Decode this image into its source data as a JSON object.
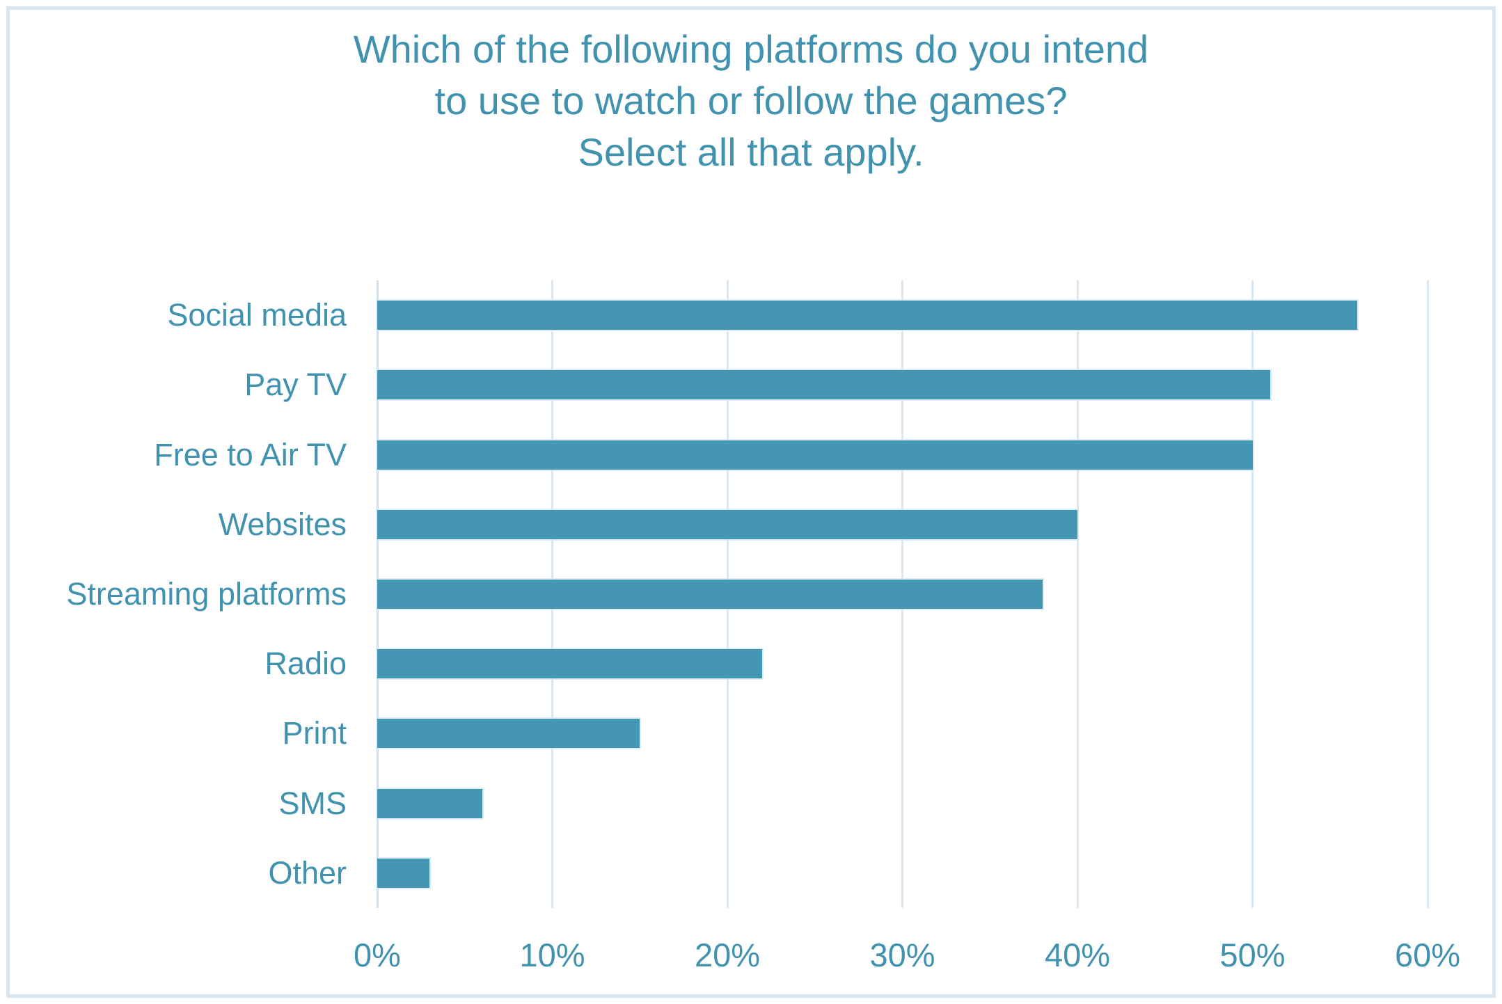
{
  "title": "Which of the following platforms do you intend to use to watch or follow the games? Select all that apply.",
  "title_lines": [
    "Which of the following platforms do you intend",
    "to use to watch or follow the games?",
    "Select all that apply."
  ],
  "colors": {
    "bar": "#4596b2",
    "text": "#4192af",
    "gridline": "#dae8f1",
    "axis_line": "#cfe0ec",
    "frame_border": "#d9e7f0",
    "background": "#ffffff"
  },
  "chart_data": {
    "type": "bar",
    "orientation": "horizontal",
    "title": "Which of the following platforms do you intend to use to watch or follow the games? Select all that apply.",
    "categories": [
      "Social media",
      "Pay TV",
      "Free to Air TV",
      "Websites",
      "Streaming platforms",
      "Radio",
      "Print",
      "SMS",
      "Other"
    ],
    "values": [
      56,
      51,
      50,
      40,
      38,
      22,
      15,
      6,
      3
    ],
    "unit": "%",
    "xlabel": "",
    "ylabel": "",
    "xlim": [
      0,
      60
    ],
    "x_ticks": [
      0,
      10,
      20,
      30,
      40,
      50,
      60
    ],
    "x_tick_labels": [
      "0%",
      "10%",
      "20%",
      "30%",
      "40%",
      "50%",
      "60%"
    ],
    "grid": "vertical-only",
    "legend": "none"
  }
}
